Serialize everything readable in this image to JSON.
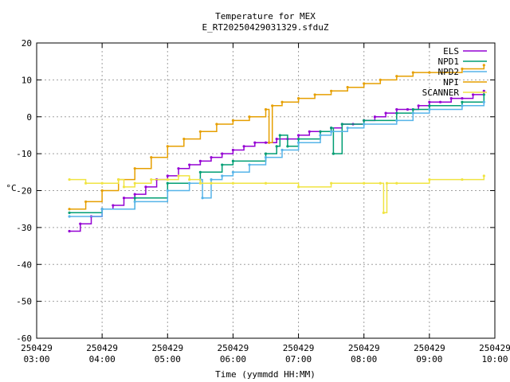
{
  "chart_data": {
    "type": "line",
    "title": "Temperature for MEX",
    "subtitle": "E_RT20250429031329.sfduZ",
    "xlabel": "Time (yymmdd HH:MM)",
    "ylabel": "°C",
    "xlim": [
      "2025-04-29 03:00",
      "2025-04-29 10:00"
    ],
    "ylim": [
      -60,
      20
    ],
    "grid": true,
    "legend_position": "top-right",
    "x_ticks": [
      {
        "date": "250429",
        "time": "03:00"
      },
      {
        "date": "250429",
        "time": "04:00"
      },
      {
        "date": "250429",
        "time": "05:00"
      },
      {
        "date": "250429",
        "time": "06:00"
      },
      {
        "date": "250429",
        "time": "07:00"
      },
      {
        "date": "250429",
        "time": "08:00"
      },
      {
        "date": "250429",
        "time": "09:00"
      },
      {
        "date": "250429",
        "time": "10:00"
      }
    ],
    "y_ticks": [
      "-60",
      "-50",
      "-40",
      "-30",
      "-20",
      "-10",
      "0",
      "10",
      "20"
    ],
    "series": [
      {
        "name": "ELS",
        "color": "#9400d3",
        "x": [
          "03:30",
          "03:40",
          "03:50",
          "04:00",
          "04:10",
          "04:20",
          "04:30",
          "04:40",
          "04:50",
          "05:00",
          "05:10",
          "05:20",
          "05:30",
          "05:40",
          "05:50",
          "06:00",
          "06:10",
          "06:20",
          "06:30",
          "06:40",
          "06:50",
          "07:00",
          "07:10",
          "07:20",
          "07:30",
          "07:40",
          "07:50",
          "08:00",
          "08:10",
          "08:20",
          "08:30",
          "08:40",
          "08:50",
          "09:00",
          "09:10",
          "09:20",
          "09:30",
          "09:40",
          "09:50"
        ],
        "y": [
          -31,
          -29,
          -27,
          -25,
          -24,
          -22,
          -21,
          -19,
          -17,
          -16,
          -14,
          -13,
          -12,
          -11,
          -10,
          -9,
          -8,
          -7,
          -7,
          -6,
          -6,
          -5,
          -4,
          -4,
          -3,
          -2,
          -2,
          -1,
          0,
          1,
          2,
          2,
          3,
          4,
          4,
          5,
          5,
          6,
          7
        ]
      },
      {
        "name": "NPD1",
        "color": "#009e73",
        "x": [
          "03:30",
          "04:00",
          "04:30",
          "05:00",
          "05:30",
          "05:50",
          "06:00",
          "06:30",
          "06:40",
          "06:43",
          "06:50",
          "07:00",
          "07:20",
          "07:30",
          "07:32",
          "07:40",
          "08:00",
          "08:30",
          "08:45",
          "09:00",
          "09:30",
          "09:50"
        ],
        "y": [
          -26,
          -25,
          -22,
          -18,
          -15,
          -13,
          -12,
          -10,
          -8,
          -5,
          -8,
          -6,
          -4,
          -3,
          -10,
          -2,
          -1,
          1,
          2,
          3,
          4,
          6
        ]
      },
      {
        "name": "NPD2",
        "color": "#56b4e9",
        "x": [
          "03:30",
          "04:00",
          "04:30",
          "05:00",
          "05:20",
          "05:30",
          "05:32",
          "05:40",
          "05:50",
          "06:00",
          "06:15",
          "06:30",
          "06:45",
          "07:00",
          "07:20",
          "07:30",
          "07:45",
          "08:00",
          "08:30",
          "08:45",
          "09:00",
          "09:30",
          "09:50"
        ],
        "y": [
          -27,
          -25,
          -23,
          -20,
          -18,
          -17,
          -22,
          -17,
          -16,
          -15,
          -13,
          -11,
          -9,
          -7,
          -5,
          -4,
          -3,
          -2,
          -1,
          1,
          2,
          3,
          4
        ]
      },
      {
        "name": "NPI",
        "color": "#e69f00",
        "x": [
          "03:30",
          "03:45",
          "04:00",
          "04:15",
          "04:30",
          "04:45",
          "05:00",
          "05:15",
          "05:30",
          "05:45",
          "06:00",
          "06:15",
          "06:30",
          "06:33",
          "06:36",
          "06:45",
          "07:00",
          "07:15",
          "07:30",
          "07:45",
          "08:00",
          "08:15",
          "08:30",
          "08:45",
          "09:00",
          "09:30",
          "09:50"
        ],
        "y": [
          -25,
          -23,
          -20,
          -17,
          -14,
          -11,
          -8,
          -6,
          -4,
          -2,
          -1,
          0,
          2,
          -7,
          3,
          4,
          5,
          6,
          7,
          8,
          9,
          10,
          11,
          12,
          12,
          13,
          14
        ]
      },
      {
        "name": "SCANNER",
        "color": "#f0e442",
        "x": [
          "03:30",
          "03:45",
          "04:00",
          "04:15",
          "04:20",
          "04:30",
          "04:45",
          "05:00",
          "05:10",
          "05:20",
          "05:30",
          "05:40",
          "06:00",
          "06:30",
          "07:00",
          "07:30",
          "08:00",
          "08:15",
          "08:18",
          "08:21",
          "08:30",
          "09:00",
          "09:30",
          "09:50"
        ],
        "y": [
          -17,
          -18,
          -18,
          -17,
          -19,
          -18,
          -17,
          -17,
          -16,
          -17,
          -18,
          -18,
          -18,
          -18,
          -19,
          -18,
          -18,
          -18,
          -26,
          -18,
          -18,
          -17,
          -17,
          -16
        ]
      }
    ]
  }
}
